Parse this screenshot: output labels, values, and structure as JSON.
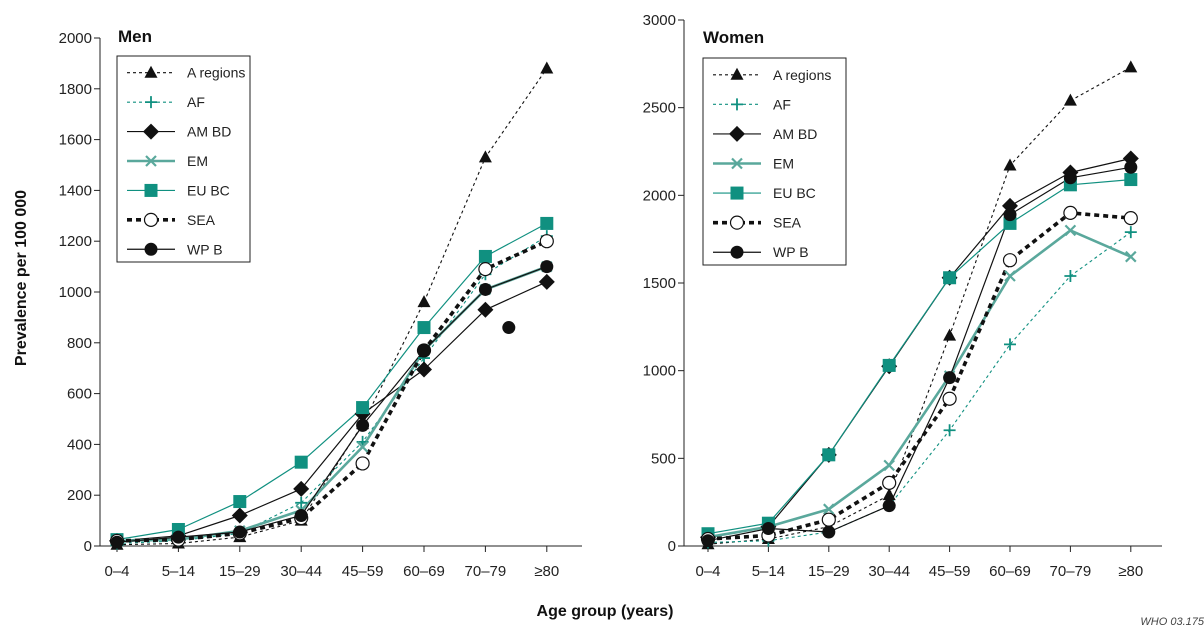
{
  "figure": {
    "ylabel": "Prevalence per 100 000",
    "xlabel": "Age group (years)",
    "credit": "WHO 03.175",
    "colors": {
      "teal": "#109080",
      "black": "#111111"
    }
  },
  "chart_data": [
    {
      "type": "line",
      "title": "Men",
      "categories": [
        "0–4",
        "5–14",
        "15–29",
        "30–44",
        "45–59",
        "60–69",
        "70–79",
        "≥80"
      ],
      "ylim": [
        0,
        2000
      ],
      "yticks": [
        0,
        200,
        400,
        600,
        800,
        1000,
        1200,
        1400,
        1600,
        1800,
        2000
      ],
      "ytick_labels": [
        "0",
        "200",
        "400",
        "600",
        "800",
        "1000",
        "1200",
        "1400",
        "1600",
        "1800",
        "2000"
      ],
      "legend_position": "top-left",
      "series": [
        {
          "name": "A regions",
          "marker": "triangle",
          "style": "dotted-thin",
          "color": "#111111",
          "values": [
            5,
            10,
            35,
            100,
            480,
            960,
            1530,
            1880
          ]
        },
        {
          "name": "AF",
          "marker": "plus",
          "style": "dotted-thin",
          "color": "#109080",
          "values": [
            10,
            20,
            50,
            170,
            410,
            740,
            1070,
            1220
          ]
        },
        {
          "name": "AM BD",
          "marker": "diamond",
          "style": "solid-thin",
          "color": "#111111",
          "values": [
            20,
            40,
            120,
            225,
            520,
            695,
            930,
            1040
          ]
        },
        {
          "name": "EM",
          "marker": "x",
          "style": "solid-thick",
          "color": "#5aa89c",
          "values": [
            20,
            25,
            60,
            140,
            390,
            770,
            1010,
            1100
          ]
        },
        {
          "name": "EU BC",
          "marker": "square",
          "style": "solid-thin",
          "color": "#109080",
          "values": [
            25,
            65,
            175,
            330,
            545,
            860,
            1140,
            1270
          ]
        },
        {
          "name": "SEA",
          "marker": "circle-open",
          "style": "dashed-thick",
          "color": "#111111",
          "values": [
            20,
            25,
            50,
            110,
            325,
            770,
            1090,
            1200
          ]
        },
        {
          "name": "WP B",
          "marker": "circle-filled",
          "style": "solid-thin",
          "color": "#111111",
          "values": [
            15,
            35,
            55,
            120,
            475,
            770,
            1010,
            1100
          ]
        }
      ],
      "extra_points": [
        {
          "series": "WP B",
          "category": "≥80",
          "value": 860
        }
      ]
    },
    {
      "type": "line",
      "title": "Women",
      "categories": [
        "0–4",
        "5–14",
        "15–29",
        "30–44",
        "45–59",
        "60–69",
        "70–79",
        "≥80"
      ],
      "ylim": [
        0,
        3000
      ],
      "yticks": [
        0,
        500,
        1000,
        1500,
        2000,
        2500,
        3000
      ],
      "ytick_labels": [
        "0",
        "500",
        "1000",
        "1500",
        "2000",
        "2500",
        "3000"
      ],
      "legend_position": "top-left",
      "series": [
        {
          "name": "A regions",
          "marker": "triangle",
          "style": "dotted-thin",
          "color": "#111111",
          "values": [
            10,
            40,
            110,
            290,
            1200,
            2170,
            2540,
            2730
          ]
        },
        {
          "name": "AF",
          "marker": "plus",
          "style": "dotted-thin",
          "color": "#109080",
          "values": [
            20,
            30,
            80,
            230,
            660,
            1150,
            1540,
            1790
          ]
        },
        {
          "name": "AM BD",
          "marker": "diamond",
          "style": "solid-thin",
          "color": "#111111",
          "values": [
            50,
            110,
            520,
            1025,
            1530,
            1940,
            2130,
            2210
          ]
        },
        {
          "name": "EM",
          "marker": "x",
          "style": "solid-thick",
          "color": "#5aa89c",
          "values": [
            50,
            110,
            210,
            460,
            970,
            1540,
            1800,
            1650
          ]
        },
        {
          "name": "EU BC",
          "marker": "square",
          "style": "solid-thin",
          "color": "#109080",
          "values": [
            70,
            130,
            520,
            1030,
            1530,
            1840,
            2060,
            2090
          ]
        },
        {
          "name": "SEA",
          "marker": "circle-open",
          "style": "dashed-thick",
          "color": "#111111",
          "values": [
            40,
            60,
            150,
            360,
            840,
            1630,
            1900,
            1870
          ]
        },
        {
          "name": "WP B",
          "marker": "circle-filled",
          "style": "solid-thin",
          "color": "#111111",
          "values": [
            30,
            100,
            80,
            230,
            960,
            1890,
            2100,
            2160
          ]
        }
      ]
    }
  ]
}
